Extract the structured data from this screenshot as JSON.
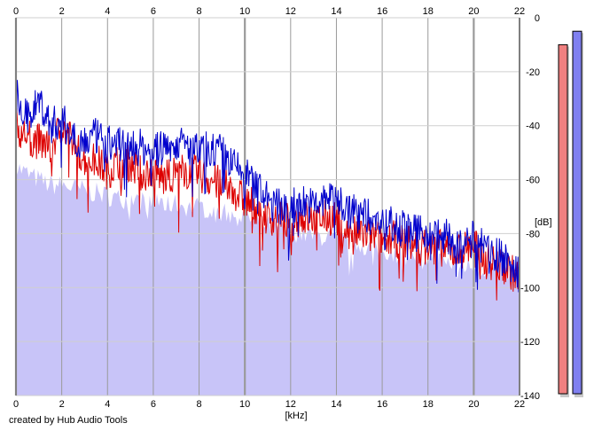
{
  "chart_data": {
    "type": "area",
    "x_axis": {
      "range": [
        0,
        22
      ],
      "ticks": [
        "0",
        "2",
        "4",
        "6",
        "8",
        "10",
        "12",
        "14",
        "16",
        "18",
        "20",
        "22"
      ],
      "label": "[kHz]",
      "major_grid_every": 10
    },
    "y_axis": {
      "range": [
        -140,
        0
      ],
      "ticks": [
        "0",
        "-20",
        "-40",
        "-60",
        "-80",
        "-100",
        "-120",
        "-140"
      ],
      "label": "[dB]",
      "grid": true
    },
    "series": [
      {
        "color": "#dd0000",
        "style": "line",
        "x": [
          0,
          0.5,
          1,
          1.5,
          2,
          2.5,
          3,
          3.5,
          4,
          4.5,
          5,
          5.5,
          6,
          6.5,
          7,
          7.5,
          8,
          8.5,
          9,
          9.5,
          10,
          10.5,
          11,
          11.5,
          12,
          12.5,
          13,
          13.5,
          14,
          14.5,
          15,
          15.5,
          16,
          16.5,
          17,
          17.5,
          18,
          18.5,
          19,
          19.5,
          20,
          20.5,
          21,
          21.5,
          22
        ],
        "y": [
          -40,
          -44,
          -46,
          -48,
          -40,
          -47,
          -52,
          -53,
          -57,
          -53,
          -54,
          -58,
          -57,
          -60,
          -57,
          -57,
          -58,
          -60,
          -62,
          -64,
          -68,
          -70,
          -74,
          -74,
          -76,
          -74,
          -75,
          -74,
          -74,
          -80,
          -80,
          -81,
          -82,
          -82,
          -83,
          -85,
          -85,
          -85,
          -87,
          -86,
          -84,
          -90,
          -91,
          -93,
          -97
        ]
      },
      {
        "color": "#0000cc",
        "style": "line",
        "x": [
          0,
          0.5,
          1,
          1.5,
          2,
          2.5,
          3,
          3.5,
          4,
          4.5,
          5,
          5.5,
          6,
          6.5,
          7,
          7.5,
          8,
          8.5,
          9,
          9.5,
          10,
          10.5,
          11,
          11.5,
          12,
          12.5,
          13,
          13.5,
          14,
          14.5,
          15,
          15.5,
          16,
          16.5,
          17,
          17.5,
          18,
          18.5,
          19,
          19.5,
          20,
          20.5,
          21,
          21.5,
          22
        ],
        "y": [
          -28,
          -38,
          -30,
          -40,
          -38,
          -44,
          -46,
          -44,
          -47,
          -46,
          -48,
          -48,
          -50,
          -48,
          -46,
          -48,
          -50,
          -48,
          -50,
          -55,
          -58,
          -62,
          -68,
          -70,
          -70,
          -68,
          -70,
          -68,
          -66,
          -72,
          -72,
          -74,
          -76,
          -76,
          -78,
          -80,
          -80,
          -80,
          -82,
          -84,
          -82,
          -86,
          -88,
          -90,
          -96
        ]
      },
      {
        "color": "#c8c4f8",
        "style": "fill",
        "x": [
          0,
          0.5,
          1,
          1.5,
          2,
          2.5,
          3,
          3.5,
          4,
          4.5,
          5,
          5.5,
          6,
          6.5,
          7,
          7.5,
          8,
          8.5,
          9,
          9.5,
          10,
          10.5,
          11,
          11.5,
          12,
          12.5,
          13,
          13.5,
          14,
          14.5,
          15,
          15.5,
          16,
          16.5,
          17,
          17.5,
          18,
          18.5,
          19,
          19.5,
          20,
          20.5,
          21,
          21.5,
          22
        ],
        "y": [
          -55,
          -58,
          -60,
          -62,
          -62,
          -63,
          -64,
          -65,
          -66,
          -67,
          -67,
          -68,
          -68,
          -69,
          -69,
          -70,
          -70,
          -71,
          -72,
          -73,
          -74,
          -75,
          -77,
          -78,
          -79,
          -80,
          -81,
          -81,
          -82,
          -83,
          -84,
          -85,
          -86,
          -87,
          -88,
          -88,
          -89,
          -90,
          -91,
          -92,
          -92,
          -93,
          -94,
          -95,
          -97
        ]
      }
    ],
    "meters": [
      {
        "color": "#f08080",
        "level_db": -10
      },
      {
        "color": "#8080f0",
        "level_db": -5
      }
    ]
  },
  "footer": {
    "credit": "created by Hub Audio Tools"
  }
}
